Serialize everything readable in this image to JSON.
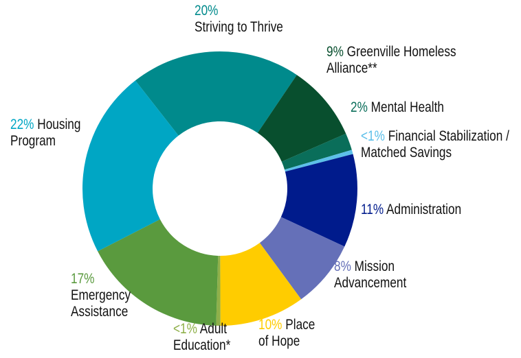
{
  "chart_data": {
    "type": "pie",
    "donut": true,
    "categories": [
      "Striving to Thrive",
      "Greenville Homeless Alliance**",
      "Mental Health",
      "Financial Stabilization / Matched Savings",
      "Administration",
      "Mission Advancement",
      "Place of Hope",
      "Adult Education*",
      "Emergency Assistance",
      "Housing Program"
    ],
    "values": [
      20,
      9,
      2,
      0.5,
      11,
      8,
      10,
      0.5,
      17,
      22
    ],
    "value_labels": [
      "20%",
      "9%",
      "2%",
      "<1%",
      "11%",
      "8%",
      "10%",
      "<1%",
      "17%",
      "22%"
    ],
    "colors": [
      "#008a8c",
      "#084f2e",
      "#0a6e5a",
      "#5cbfe9",
      "#001b8c",
      "#6570b8",
      "#ffcc00",
      "#8fb04a",
      "#5a9a3e",
      "#00a6c4"
    ]
  }
}
